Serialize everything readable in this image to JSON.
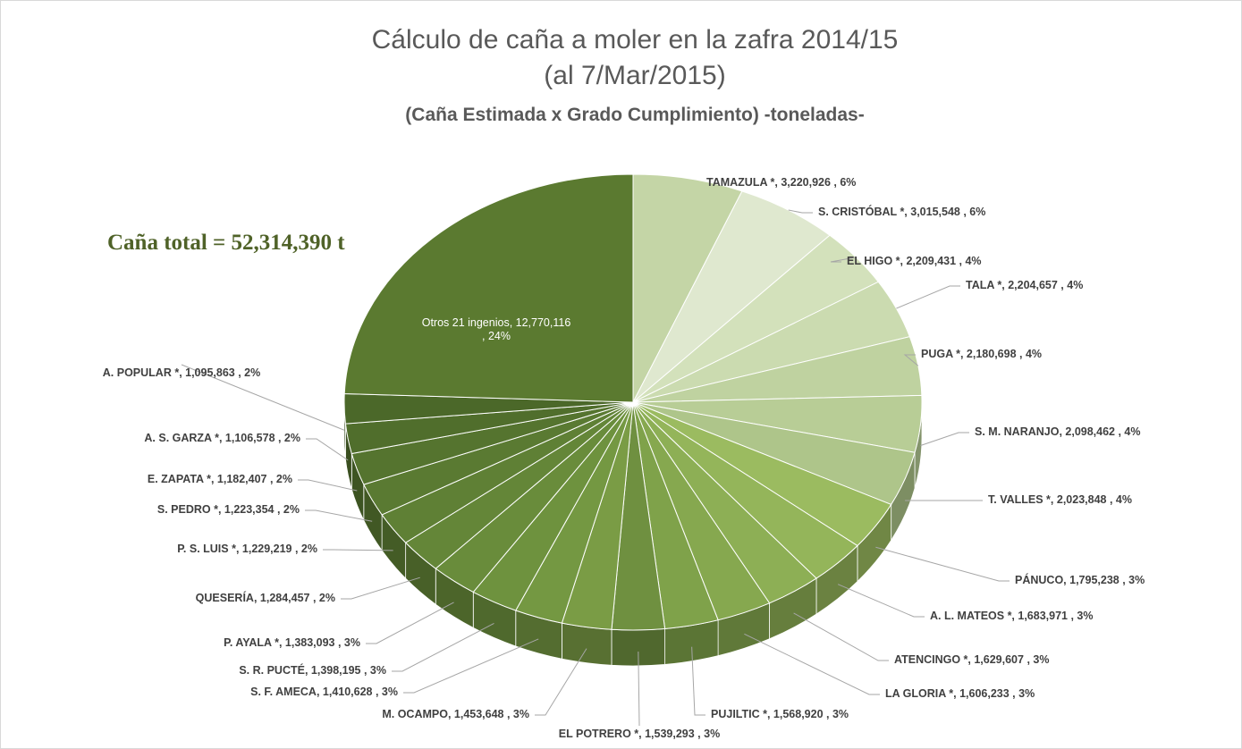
{
  "chart_data": {
    "type": "pie",
    "title": "Cálculo de caña a moler en la zafra 2014/15",
    "title_line2": "(al 7/Mar/2015)",
    "subtitle": "(Caña Estimada x Grado Cumplimiento) -toneladas-",
    "annotation": "Caña total = 52,314,390 t",
    "values": [
      3220926,
      3015548,
      2209431,
      2204657,
      2180698,
      2098462,
      2023848,
      1795238,
      1683971,
      1629607,
      1606233,
      1568920,
      1539293,
      1453648,
      1410628,
      1398195,
      1383093,
      1284457,
      1229219,
      1223354,
      1182407,
      1106578,
      1095863,
      12770116
    ],
    "value_labels": [
      "TAMAZULA *,  3,220,926 , 6%",
      "S. CRISTÓBAL *,  3,015,548 , 6%",
      "EL HIGO *,  2,209,431 , 4%",
      "TALA *,  2,204,657 , 4%",
      "PUGA *,  2,180,698 , 4%",
      "S. M. NARANJO,  2,098,462 , 4%",
      "T. VALLES *,  2,023,848 , 4%",
      "PÁNUCO,  1,795,238 , 3%",
      "A. L. MATEOS *,  1,683,971 , 3%",
      "ATENCINGO *,  1,629,607 , 3%",
      "LA GLORIA *,  1,606,233 , 3%",
      "PUJILTIC *,  1,568,920 , 3%",
      "EL POTRERO  *,  1,539,293 , 3%",
      "M. OCAMPO,  1,453,648 , 3%",
      "S. F. AMECA,  1,410,628 , 3%",
      "S. R. PUCTÉ,  1,398,195 , 3%",
      "P. AYALA *,  1,383,093 , 3%",
      "QUESERÍA,  1,284,457 , 2%",
      "P. S. LUIS *,  1,229,219 , 2%",
      "S. PEDRO *,  1,223,354 , 2%",
      "E. ZAPATA *,  1,182,407 , 2%",
      "A. S. GARZA *,  1,106,578 , 2%",
      "A. POPULAR *,  1,095,863 , 2%",
      "Otros 21 ingenios, 12,770,116 , 24%"
    ],
    "colors": [
      "#c4d5a6",
      "#dfe8cf",
      "#d3e1bb",
      "#cbdbb0",
      "#bfd2a0",
      "#b8cd96",
      "#aec58a",
      "#9bbb60",
      "#94b55a",
      "#8daf55",
      "#86a84f",
      "#7fa24a",
      "#6f9040",
      "#7a9c45",
      "#749842",
      "#6e923e",
      "#698c3b",
      "#648638",
      "#5f8035",
      "#5a7a32",
      "#55742f",
      "#506e2c",
      "#4b6829",
      "#5b7a30"
    ]
  }
}
